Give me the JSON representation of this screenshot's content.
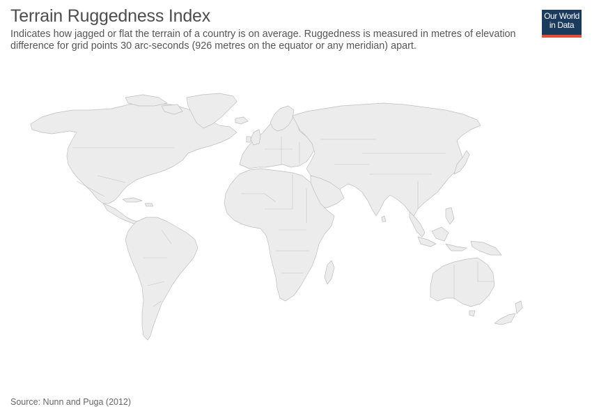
{
  "header": {
    "title": "Terrain Ruggedness Index",
    "subtitle": "Indicates how jagged or flat the terrain of a country is on average. Ruggedness is measured in metres of elevation difference for grid points 30 arc-seconds (926 metres on the equator or any meridian) apart."
  },
  "logo": {
    "line1": "Our World",
    "line2": "in Data",
    "bg_color": "#1a3a5e",
    "accent_color": "#e0533a"
  },
  "map": {
    "land_color": "#ececec",
    "border_color": "#bdbdbd",
    "data_shown": "none"
  },
  "footer": {
    "source": "Source: Nunn and Puga (2012)"
  }
}
